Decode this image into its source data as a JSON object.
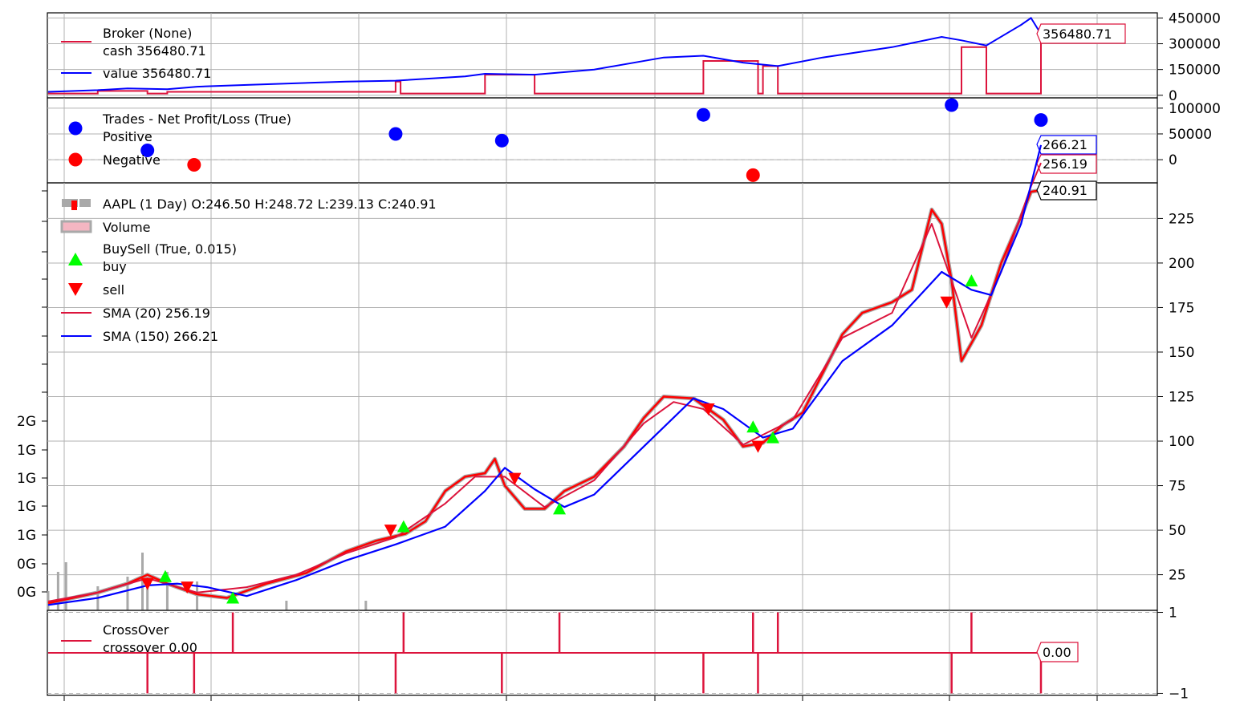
{
  "colors": {
    "red": "#dc143c",
    "blue": "#0000ff",
    "green": "#00ff00",
    "marker_red": "#ff0000",
    "grid": "#b0b0b0",
    "volume": "#a9a9a9"
  },
  "chart_data": [
    {
      "panel": "broker",
      "type": "line",
      "legend": {
        "title": "Broker (None)",
        "items": [
          "cash 356480.71",
          "value 356480.71"
        ],
        "placement": "upper-left"
      },
      "y_ticks": [
        "450000",
        "300000",
        "150000",
        "0"
      ],
      "y_tick_values": [
        450000,
        300000,
        150000,
        0
      ],
      "ylim": [
        -15000,
        480000
      ],
      "last_value_tag": "356480.71",
      "series": [
        {
          "name": "cash",
          "color": "#dc143c",
          "points": [
            [
              0,
              10000
            ],
            [
              0.05,
              10000
            ],
            [
              0.05,
              25000
            ],
            [
              0.1,
              25000
            ],
            [
              0.1,
              10000
            ],
            [
              0.12,
              10000
            ],
            [
              0.12,
              20000
            ],
            [
              0.35,
              20000
            ],
            [
              0.35,
              80000
            ],
            [
              0.355,
              80000
            ],
            [
              0.355,
              10000
            ],
            [
              0.44,
              10000
            ],
            [
              0.44,
              120000
            ],
            [
              0.49,
              120000
            ],
            [
              0.49,
              10000
            ],
            [
              0.66,
              10000
            ],
            [
              0.66,
              200000
            ],
            [
              0.715,
              200000
            ],
            [
              0.715,
              10000
            ],
            [
              0.72,
              10000
            ],
            [
              0.72,
              170000
            ],
            [
              0.735,
              170000
            ],
            [
              0.735,
              10000
            ],
            [
              0.92,
              10000
            ],
            [
              0.92,
              280000
            ],
            [
              0.945,
              280000
            ],
            [
              0.945,
              10000
            ],
            [
              1,
              10000
            ],
            [
              1,
              356480
            ]
          ]
        },
        {
          "name": "value",
          "color": "#0000ff",
          "points": [
            [
              0,
              20000
            ],
            [
              0.05,
              30000
            ],
            [
              0.08,
              40000
            ],
            [
              0.12,
              35000
            ],
            [
              0.15,
              50000
            ],
            [
              0.2,
              60000
            ],
            [
              0.3,
              80000
            ],
            [
              0.35,
              85000
            ],
            [
              0.42,
              110000
            ],
            [
              0.44,
              125000
            ],
            [
              0.49,
              120000
            ],
            [
              0.55,
              150000
            ],
            [
              0.62,
              220000
            ],
            [
              0.66,
              230000
            ],
            [
              0.7,
              190000
            ],
            [
              0.735,
              170000
            ],
            [
              0.78,
              220000
            ],
            [
              0.85,
              280000
            ],
            [
              0.9,
              340000
            ],
            [
              0.92,
              320000
            ],
            [
              0.945,
              290000
            ],
            [
              0.98,
              410000
            ],
            [
              0.99,
              450000
            ],
            [
              1,
              356480
            ]
          ]
        }
      ]
    },
    {
      "panel": "trades",
      "type": "scatter",
      "legend": {
        "title": "Trades - Net Profit/Loss (True)",
        "items": [
          "Positive",
          "Negative"
        ],
        "placement": "upper-left"
      },
      "y_ticks": [
        "100000",
        "50000",
        "0"
      ],
      "y_tick_values": [
        100000,
        50000,
        0
      ],
      "ylim": [
        -45000,
        120000
      ],
      "tags": [
        "266.21",
        "256.19"
      ],
      "positive": [
        [
          0.1,
          18000
        ],
        [
          0.35,
          50000
        ],
        [
          0.457,
          37000
        ],
        [
          0.66,
          87000
        ],
        [
          0.91,
          106000
        ],
        [
          1,
          77000
        ]
      ],
      "negative": [
        [
          0.147,
          -10000
        ],
        [
          0.71,
          -30000
        ]
      ]
    },
    {
      "panel": "price",
      "type": "line",
      "legend": {
        "items": [
          "AAPL (1 Day) O:246.50 H:248.72 L:239.13 C:240.91",
          "Volume",
          "BuySell (True, 0.015)",
          "buy",
          "sell",
          "SMA (20) 256.19",
          "SMA (150) 266.21"
        ],
        "placement": "upper-left"
      },
      "y_ticks": [
        "225",
        "200",
        "175",
        "150",
        "125",
        "100",
        "75",
        "50",
        "25"
      ],
      "y_tick_values": [
        225,
        200,
        175,
        150,
        125,
        100,
        75,
        50,
        25
      ],
      "ylim": [
        5,
        245
      ],
      "volume_ticks": [
        "2G",
        "1G",
        "1G",
        "1G",
        "1G",
        "0G",
        "0G"
      ],
      "last_price_tag": "240.91",
      "close": [
        [
          0,
          9
        ],
        [
          0.05,
          15
        ],
        [
          0.08,
          20
        ],
        [
          0.1,
          25
        ],
        [
          0.12,
          20
        ],
        [
          0.15,
          14
        ],
        [
          0.18,
          12
        ],
        [
          0.22,
          20
        ],
        [
          0.26,
          26
        ],
        [
          0.3,
          38
        ],
        [
          0.33,
          44
        ],
        [
          0.36,
          48
        ],
        [
          0.38,
          55
        ],
        [
          0.4,
          72
        ],
        [
          0.42,
          80
        ],
        [
          0.44,
          82
        ],
        [
          0.45,
          90
        ],
        [
          0.46,
          75
        ],
        [
          0.48,
          62
        ],
        [
          0.5,
          62
        ],
        [
          0.52,
          72
        ],
        [
          0.55,
          80
        ],
        [
          0.58,
          97
        ],
        [
          0.6,
          113
        ],
        [
          0.62,
          125
        ],
        [
          0.65,
          124
        ],
        [
          0.68,
          112
        ],
        [
          0.7,
          97
        ],
        [
          0.72,
          99
        ],
        [
          0.74,
          109
        ],
        [
          0.76,
          116
        ],
        [
          0.78,
          138
        ],
        [
          0.8,
          160
        ],
        [
          0.82,
          172
        ],
        [
          0.85,
          178
        ],
        [
          0.87,
          185
        ],
        [
          0.89,
          230
        ],
        [
          0.9,
          222
        ],
        [
          0.91,
          190
        ],
        [
          0.92,
          145
        ],
        [
          0.94,
          165
        ],
        [
          0.96,
          200
        ],
        [
          0.98,
          226
        ],
        [
          0.99,
          240
        ],
        [
          1,
          240.91
        ]
      ],
      "sma20": [
        [
          0,
          10
        ],
        [
          0.05,
          15
        ],
        [
          0.1,
          23
        ],
        [
          0.15,
          15
        ],
        [
          0.2,
          18
        ],
        [
          0.25,
          25
        ],
        [
          0.3,
          37
        ],
        [
          0.35,
          46
        ],
        [
          0.4,
          65
        ],
        [
          0.43,
          80
        ],
        [
          0.46,
          80
        ],
        [
          0.5,
          63
        ],
        [
          0.55,
          78
        ],
        [
          0.6,
          110
        ],
        [
          0.63,
          122
        ],
        [
          0.66,
          118
        ],
        [
          0.7,
          98
        ],
        [
          0.75,
          112
        ],
        [
          0.8,
          158
        ],
        [
          0.85,
          172
        ],
        [
          0.89,
          222
        ],
        [
          0.91,
          190
        ],
        [
          0.93,
          158
        ],
        [
          0.96,
          195
        ],
        [
          0.99,
          243
        ],
        [
          1,
          256.19
        ]
      ],
      "sma150": [
        [
          0,
          8
        ],
        [
          0.05,
          12
        ],
        [
          0.1,
          19
        ],
        [
          0.13,
          20
        ],
        [
          0.16,
          18
        ],
        [
          0.2,
          13
        ],
        [
          0.25,
          22
        ],
        [
          0.3,
          33
        ],
        [
          0.35,
          42
        ],
        [
          0.4,
          52
        ],
        [
          0.44,
          72
        ],
        [
          0.46,
          85
        ],
        [
          0.49,
          73
        ],
        [
          0.52,
          63
        ],
        [
          0.55,
          70
        ],
        [
          0.6,
          97
        ],
        [
          0.65,
          124
        ],
        [
          0.68,
          118
        ],
        [
          0.72,
          102
        ],
        [
          0.75,
          107
        ],
        [
          0.8,
          145
        ],
        [
          0.85,
          165
        ],
        [
          0.9,
          195
        ],
        [
          0.93,
          185
        ],
        [
          0.95,
          182
        ],
        [
          0.98,
          222
        ],
        [
          1,
          266.21
        ]
      ],
      "buy": [
        [
          0.118,
          24
        ],
        [
          0.186,
          12
        ],
        [
          0.358,
          52
        ],
        [
          0.515,
          62
        ],
        [
          0.71,
          108
        ],
        [
          0.73,
          102
        ],
        [
          0.93,
          190
        ]
      ],
      "sell": [
        [
          0.1,
          20
        ],
        [
          0.14,
          18
        ],
        [
          0.345,
          50
        ],
        [
          0.47,
          79
        ],
        [
          0.665,
          118
        ],
        [
          0.715,
          97
        ],
        [
          0.905,
          178
        ]
      ],
      "volume": [
        [
          0,
          0.2
        ],
        [
          0.01,
          0.4
        ],
        [
          0.018,
          0.5
        ],
        [
          0.05,
          0.25
        ],
        [
          0.08,
          0.35
        ],
        [
          0.095,
          0.6
        ],
        [
          0.1,
          0.25
        ],
        [
          0.12,
          0.4
        ],
        [
          0.15,
          0.3
        ],
        [
          0.24,
          0.1
        ],
        [
          0.32,
          0.1
        ]
      ]
    },
    {
      "panel": "crossover",
      "type": "line",
      "legend": {
        "title": "CrossOver",
        "items": [
          "crossover 0.00"
        ],
        "placement": "upper-left"
      },
      "y_ticks": [
        "1",
        "−1"
      ],
      "y_tick_values": [
        1,
        -1
      ],
      "ylim": [
        -1.05,
        1.05
      ],
      "last_value_tag": "0.00",
      "events": [
        [
          0.1,
          -1
        ],
        [
          0.147,
          -1
        ],
        [
          0.186,
          1
        ],
        [
          0.35,
          -1
        ],
        [
          0.358,
          1
        ],
        [
          0.457,
          -1
        ],
        [
          0.515,
          1
        ],
        [
          0.66,
          -1
        ],
        [
          0.71,
          1
        ],
        [
          0.715,
          -1
        ],
        [
          0.735,
          1
        ],
        [
          0.91,
          -1
        ],
        [
          0.93,
          1
        ],
        [
          1,
          -1
        ]
      ]
    }
  ]
}
